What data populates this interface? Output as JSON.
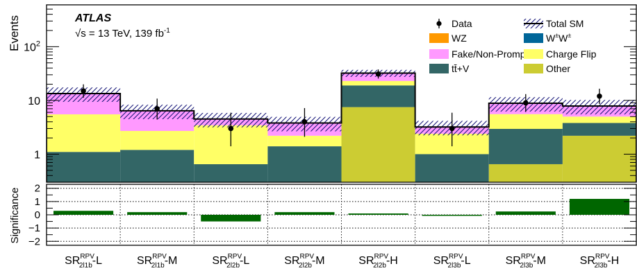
{
  "chart_data": {
    "type": "bar",
    "stacked": true,
    "log_scale": true,
    "experiment": "ATLAS",
    "energy_label": "√s = 13 TeV, 139 fb",
    "lumi_superscript": "-1",
    "ylabel": "Events",
    "ylim": [
      0.3,
      600
    ],
    "yticks": [
      {
        "value": 1,
        "label": "1",
        "sup": ""
      },
      {
        "value": 10,
        "label": "10",
        "sup": ""
      },
      {
        "value": 100,
        "label": "10",
        "sup": "2"
      }
    ],
    "categories": [
      {
        "main": "SR",
        "sup": "RPV",
        "sub": "2l1b",
        "suffix": "-L"
      },
      {
        "main": "SR",
        "sup": "RPV",
        "sub": "2l1b",
        "suffix": "-M"
      },
      {
        "main": "SR",
        "sup": "RPV",
        "sub": "2l2b",
        "suffix": "-L"
      },
      {
        "main": "SR",
        "sup": "RPV",
        "sub": "2l2b",
        "suffix": "-M"
      },
      {
        "main": "SR",
        "sup": "RPV",
        "sub": "2l2b",
        "suffix": "-H"
      },
      {
        "main": "SR",
        "sup": "RPV",
        "sub": "2l3b",
        "suffix": "-L"
      },
      {
        "main": "SR",
        "sup": "RPV",
        "sub": "2l3b",
        "suffix": "-M"
      },
      {
        "main": "SR",
        "sup": "RPV",
        "sub": "2l3b",
        "suffix": "-H"
      }
    ],
    "stack_series": [
      {
        "name": "Other",
        "color": "#cccc33",
        "values": [
          0.2,
          0.2,
          0.2,
          0.2,
          7.5,
          0.2,
          0.65,
          2.2
        ]
      },
      {
        "name": "tt̄+V",
        "color": "#336666",
        "values": [
          0.9,
          1.0,
          0.45,
          1.2,
          11.5,
          0.8,
          2.3,
          1.6
        ]
      },
      {
        "name": "Charge Flip",
        "color": "#ffff66",
        "values": [
          4.4,
          1.5,
          2.8,
          0.8,
          4.0,
          1.4,
          2.6,
          1.2
        ]
      },
      {
        "name": "Fake/Non-Prompt",
        "color": "#ff99ff",
        "values": [
          7.8,
          3.6,
          1.0,
          1.6,
          9.0,
          0.8,
          3.2,
          2.8
        ]
      },
      {
        "name": "WZ",
        "color": "#ff9900",
        "values": [
          0.05,
          0.05,
          0.03,
          0.04,
          0.1,
          0.03,
          0.05,
          0.05
        ]
      },
      {
        "name": "W±W±",
        "color": "#006699",
        "values": [
          0.05,
          0.05,
          0.03,
          0.04,
          0.1,
          0.03,
          0.05,
          0.05
        ]
      }
    ],
    "total_sm": [
      13.4,
      6.4,
      4.5,
      3.8,
      32.2,
      3.2,
      8.85,
      7.85
    ],
    "total_sm_unc_relative": [
      0.3,
      0.3,
      0.3,
      0.3,
      0.15,
      0.3,
      0.3,
      0.3
    ],
    "data": [
      15,
      7,
      3,
      4,
      31,
      3,
      9,
      12
    ],
    "data_err_low": [
      3.8,
      2.6,
      1.6,
      1.9,
      5.5,
      1.6,
      2.9,
      3.4
    ],
    "data_err_high": [
      4.9,
      3.8,
      2.9,
      3.2,
      6.6,
      2.9,
      4.1,
      4.5
    ],
    "significance": [
      0.3,
      0.2,
      -0.5,
      0.2,
      0.1,
      -0.05,
      0.25,
      1.2
    ],
    "significance_color": "#006600",
    "sig_label": "Significance",
    "sig_ylim": [
      -2.3,
      2.3
    ],
    "sig_ticks": [
      {
        "value": 2,
        "label": "2"
      },
      {
        "value": 1,
        "label": "1"
      },
      {
        "value": 0,
        "label": "0"
      },
      {
        "value": -1,
        "label": "−1"
      },
      {
        "value": -2,
        "label": "−2"
      }
    ],
    "legend": [
      {
        "name": "Data",
        "kind": "marker"
      },
      {
        "name": "Total SM",
        "kind": "hatch"
      },
      {
        "name": "WZ",
        "kind": "fill",
        "color": "#ff9900"
      },
      {
        "name": "W±W±",
        "kind": "fill",
        "color": "#006699",
        "label_main": "W",
        "label_sup1": "±",
        "label_mid": "W",
        "label_sup2": "±"
      },
      {
        "name": "Fake/Non-Prompt",
        "kind": "fill",
        "color": "#ff99ff"
      },
      {
        "name": "Charge Flip",
        "kind": "fill",
        "color": "#ffff66"
      },
      {
        "name": "tt̄+V",
        "kind": "fill",
        "color": "#336666"
      },
      {
        "name": "Other",
        "kind": "fill",
        "color": "#cccc33"
      }
    ],
    "legend_placement": "top-right",
    "grid_lower_panel": true
  }
}
